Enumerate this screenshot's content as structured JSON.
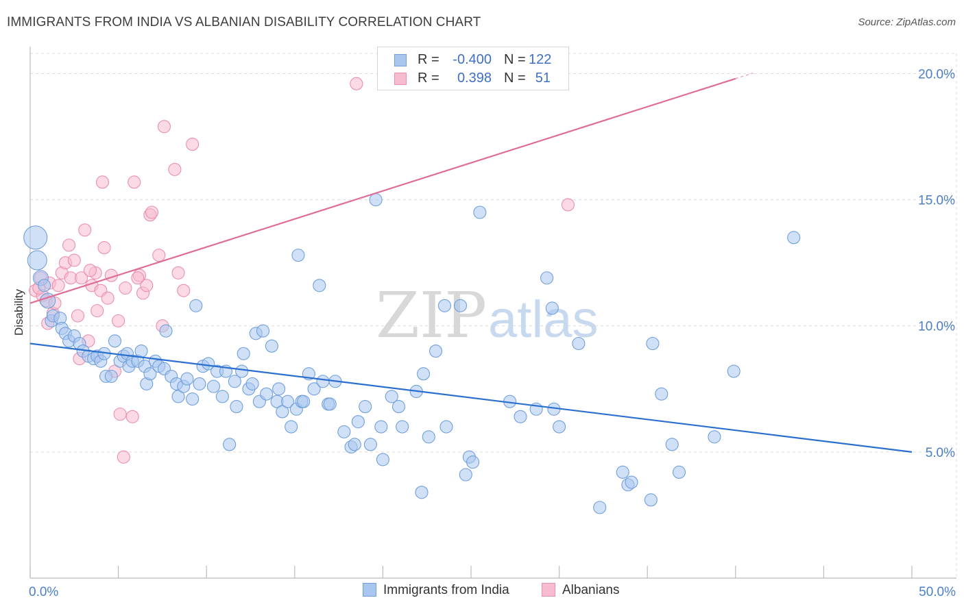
{
  "title": "IMMIGRANTS FROM INDIA VS ALBANIAN DISABILITY CORRELATION CHART",
  "source": "Source: ZipAtlas.com",
  "watermark": {
    "zip": "ZIP",
    "atlas": "atlas"
  },
  "colors": {
    "india_fill": "#a9c6ef",
    "india_stroke": "#6f9fdc",
    "india_line": "#2a6fd0",
    "albanian_fill": "#f7bccf",
    "albanian_stroke": "#ea8eac",
    "albanian_line": "#e06c94",
    "tick_text": "#4a7fc8",
    "grid": "#dcdcdc"
  },
  "legend": {
    "rows": [
      {
        "r_label": "R =",
        "r_value": "-0.400",
        "n_label": "N =",
        "n_value": "122"
      },
      {
        "r_label": "R =",
        "r_value": "0.398",
        "n_label": "N =",
        "n_value": "51"
      }
    ]
  },
  "chart_data": {
    "type": "scatter",
    "title": "IMMIGRANTS FROM INDIA VS ALBANIAN DISABILITY CORRELATION CHART",
    "xlabel": "",
    "ylabel": "Disability",
    "xlim": [
      0,
      50
    ],
    "ylim": [
      0,
      20.8
    ],
    "x_tick_labels": [
      "0.0%",
      "50.0%"
    ],
    "y_ticks": [
      5,
      10,
      15,
      20
    ],
    "y_tick_labels": [
      "5.0%",
      "10.0%",
      "15.0%",
      "20.0%"
    ],
    "grid": true,
    "legend_position": "bottom",
    "series": [
      {
        "name": "Immigrants from India",
        "r": -0.4,
        "n": 122,
        "trend": {
          "x": [
            0,
            50
          ],
          "y": [
            9.3,
            5.0
          ]
        },
        "points": [
          [
            0.3,
            13.5
          ],
          [
            0.4,
            12.6
          ],
          [
            0.6,
            11.9
          ],
          [
            0.8,
            11.6
          ],
          [
            1.0,
            11.0
          ],
          [
            1.2,
            10.2
          ],
          [
            1.3,
            10.4
          ],
          [
            1.7,
            10.3
          ],
          [
            1.8,
            9.9
          ],
          [
            2.0,
            9.7
          ],
          [
            2.2,
            9.4
          ],
          [
            2.5,
            9.6
          ],
          [
            2.8,
            9.3
          ],
          [
            3.0,
            9.0
          ],
          [
            3.3,
            8.8
          ],
          [
            3.6,
            8.7
          ],
          [
            3.8,
            8.8
          ],
          [
            4.0,
            8.6
          ],
          [
            4.2,
            8.9
          ],
          [
            4.3,
            8.0
          ],
          [
            4.6,
            8.0
          ],
          [
            4.8,
            9.4
          ],
          [
            5.1,
            8.6
          ],
          [
            5.3,
            8.8
          ],
          [
            5.5,
            8.9
          ],
          [
            5.6,
            8.4
          ],
          [
            5.8,
            8.6
          ],
          [
            6.1,
            8.6
          ],
          [
            6.3,
            9.0
          ],
          [
            6.5,
            8.4
          ],
          [
            6.6,
            7.7
          ],
          [
            6.8,
            8.1
          ],
          [
            7.1,
            8.6
          ],
          [
            7.3,
            8.4
          ],
          [
            7.6,
            8.3
          ],
          [
            7.7,
            9.8
          ],
          [
            8.0,
            8.0
          ],
          [
            8.3,
            7.7
          ],
          [
            8.4,
            7.2
          ],
          [
            8.7,
            7.6
          ],
          [
            8.9,
            7.9
          ],
          [
            9.2,
            7.1
          ],
          [
            9.4,
            10.8
          ],
          [
            9.6,
            7.7
          ],
          [
            9.8,
            8.4
          ],
          [
            10.1,
            8.5
          ],
          [
            10.4,
            7.6
          ],
          [
            10.6,
            8.2
          ],
          [
            10.9,
            7.2
          ],
          [
            11.1,
            8.2
          ],
          [
            11.3,
            5.3
          ],
          [
            11.6,
            7.8
          ],
          [
            11.7,
            6.8
          ],
          [
            12.0,
            8.2
          ],
          [
            12.1,
            8.9
          ],
          [
            12.4,
            7.5
          ],
          [
            12.6,
            7.7
          ],
          [
            12.8,
            9.7
          ],
          [
            13.0,
            7.0
          ],
          [
            13.2,
            9.8
          ],
          [
            13.4,
            7.3
          ],
          [
            13.7,
            9.2
          ],
          [
            14.0,
            7.0
          ],
          [
            14.1,
            7.5
          ],
          [
            14.3,
            6.6
          ],
          [
            14.6,
            7.0
          ],
          [
            14.8,
            6.0
          ],
          [
            15.1,
            6.7
          ],
          [
            15.2,
            12.8
          ],
          [
            15.4,
            7.0
          ],
          [
            15.5,
            7.0
          ],
          [
            15.8,
            8.1
          ],
          [
            16.1,
            7.5
          ],
          [
            16.4,
            11.6
          ],
          [
            16.6,
            7.8
          ],
          [
            16.9,
            6.9
          ],
          [
            17.0,
            6.9
          ],
          [
            17.3,
            7.8
          ],
          [
            17.8,
            5.8
          ],
          [
            18.2,
            5.2
          ],
          [
            18.4,
            5.3
          ],
          [
            18.6,
            6.2
          ],
          [
            19.0,
            6.8
          ],
          [
            19.3,
            5.3
          ],
          [
            19.6,
            15.0
          ],
          [
            19.9,
            6.0
          ],
          [
            20.0,
            4.7
          ],
          [
            20.5,
            7.2
          ],
          [
            20.9,
            6.8
          ],
          [
            21.1,
            6.0
          ],
          [
            21.9,
            7.4
          ],
          [
            22.2,
            3.4
          ],
          [
            22.3,
            8.1
          ],
          [
            22.6,
            5.6
          ],
          [
            23.6,
            6.0
          ],
          [
            23.5,
            10.8
          ],
          [
            24.4,
            10.8
          ],
          [
            24.7,
            4.1
          ],
          [
            24.9,
            4.8
          ],
          [
            25.1,
            4.6
          ],
          [
            25.5,
            14.5
          ],
          [
            27.2,
            7.0
          ],
          [
            27.8,
            6.4
          ],
          [
            28.7,
            6.7
          ],
          [
            29.3,
            11.9
          ],
          [
            29.6,
            10.7
          ],
          [
            29.7,
            6.7
          ],
          [
            30.0,
            6.0
          ],
          [
            31.1,
            9.3
          ],
          [
            32.3,
            2.8
          ],
          [
            33.6,
            4.2
          ],
          [
            33.9,
            3.7
          ],
          [
            34.1,
            3.8
          ],
          [
            35.2,
            3.1
          ],
          [
            35.3,
            9.3
          ],
          [
            35.8,
            7.3
          ],
          [
            36.4,
            5.3
          ],
          [
            36.8,
            4.2
          ],
          [
            38.8,
            5.6
          ],
          [
            39.9,
            8.2
          ],
          [
            43.3,
            13.5
          ],
          [
            23.0,
            9.0
          ]
        ]
      },
      {
        "name": "Albanians",
        "r": 0.398,
        "n": 51,
        "trend": {
          "x": [
            0,
            40
          ],
          "y": [
            10.9,
            19.8
          ]
        },
        "points": [
          [
            0.3,
            11.4
          ],
          [
            0.6,
            11.9
          ],
          [
            0.7,
            11.2
          ],
          [
            0.9,
            11.0
          ],
          [
            1.1,
            11.7
          ],
          [
            1.3,
            10.5
          ],
          [
            1.4,
            10.9
          ],
          [
            1.6,
            11.6
          ],
          [
            1.8,
            12.1
          ],
          [
            2.0,
            12.5
          ],
          [
            2.2,
            13.2
          ],
          [
            2.3,
            11.9
          ],
          [
            2.5,
            12.6
          ],
          [
            2.7,
            10.4
          ],
          [
            2.9,
            11.9
          ],
          [
            3.1,
            13.8
          ],
          [
            3.3,
            9.4
          ],
          [
            3.5,
            11.6
          ],
          [
            3.7,
            12.1
          ],
          [
            3.8,
            10.6
          ],
          [
            4.0,
            11.4
          ],
          [
            4.1,
            15.7
          ],
          [
            4.2,
            13.1
          ],
          [
            4.4,
            11.1
          ],
          [
            4.6,
            12.0
          ],
          [
            4.8,
            8.2
          ],
          [
            5.0,
            10.2
          ],
          [
            5.1,
            6.5
          ],
          [
            5.3,
            4.8
          ],
          [
            5.4,
            11.5
          ],
          [
            5.8,
            6.4
          ],
          [
            5.9,
            15.7
          ],
          [
            6.2,
            12.0
          ],
          [
            6.4,
            11.3
          ],
          [
            6.6,
            11.6
          ],
          [
            6.8,
            14.4
          ],
          [
            6.9,
            14.5
          ],
          [
            7.3,
            12.8
          ],
          [
            7.5,
            10.0
          ],
          [
            7.6,
            17.9
          ],
          [
            8.2,
            16.2
          ],
          [
            8.4,
            12.1
          ],
          [
            8.7,
            11.4
          ],
          [
            9.2,
            17.2
          ],
          [
            18.5,
            19.6
          ],
          [
            30.5,
            14.8
          ],
          [
            1.0,
            10.1
          ],
          [
            2.8,
            8.7
          ],
          [
            3.4,
            12.2
          ],
          [
            6.1,
            11.9
          ],
          [
            0.5,
            11.5
          ]
        ]
      }
    ]
  }
}
